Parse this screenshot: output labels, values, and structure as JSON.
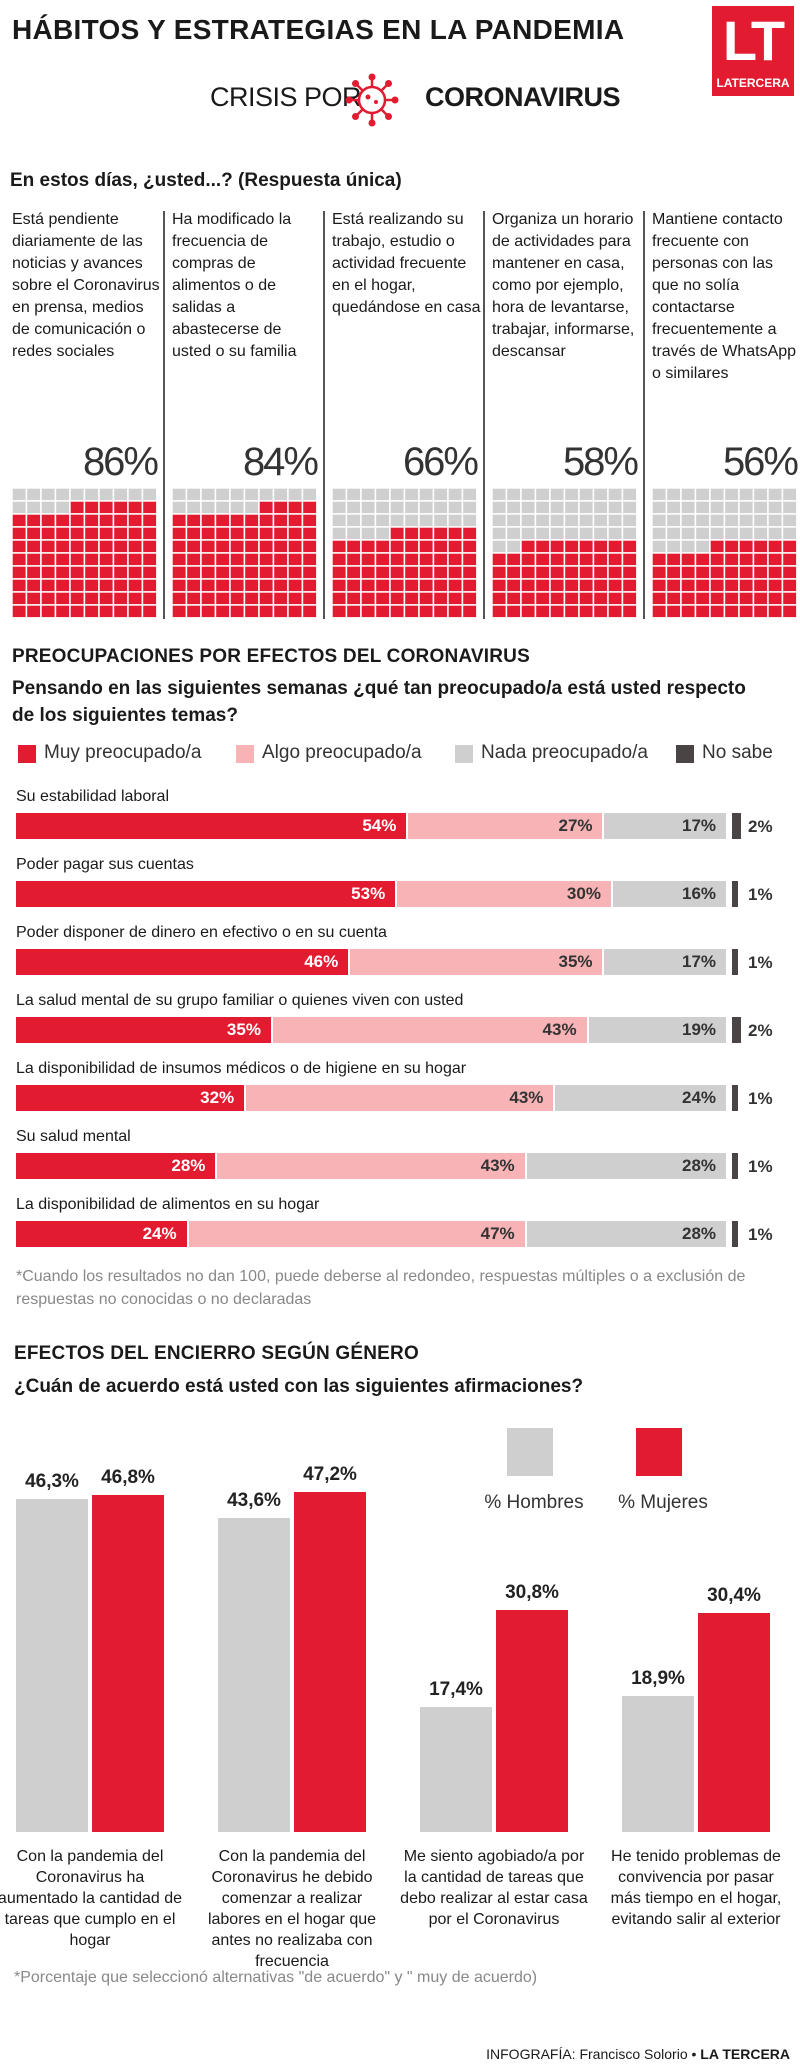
{
  "header": {
    "title": "HÁBITOS Y ESTRATEGIAS EN LA PANDEMIA",
    "crisis_pre": "CRISIS POR",
    "crisis_post": "CORONAVIRUS",
    "logo_letters": "LT",
    "logo_name": "LATERCERA"
  },
  "colors": {
    "red": "#e21b30",
    "pink": "#f7b3b6",
    "gray": "#cfcfcf",
    "dark": "#4a4544"
  },
  "chart_data": [
    {
      "type": "waffle",
      "title": "En estos días, ¿usted...? (Respuesta única)",
      "categories": [
        "Está pendiente diariamente de las noticias y avances sobre el Coronavirus en prensa, medios de comunicación o redes sociales",
        "Ha modificado la frecuencia de compras de alimentos o de salidas a abastecerse de usted o su familia",
        "Está realizando su trabajo, estudio o actividad frecuente en el hogar, quedándose en casa",
        "Organiza un horario de actividades para mantener en casa, como por ejemplo, hora de levantarse, trabajar, informarse, descansar",
        "Mantiene contacto frecuente con personas con las que no solía contactarse frecuentemente a través de WhatsApp o similares"
      ],
      "values": [
        86,
        84,
        66,
        58,
        56
      ],
      "labels": [
        "86%",
        "84%",
        "66%",
        "58%",
        "56%"
      ]
    },
    {
      "type": "bar",
      "stacked": true,
      "orientation": "horizontal",
      "title": "PREOCUPACIONES POR EFECTOS DEL CORONAVIRUS",
      "subtitle": "Pensando en las siguientes semanas ¿qué tan preocupado/a está usted respecto de los siguientes temas?",
      "legend": [
        "Muy preocupado/a",
        "Algo preocupado/a",
        "Nada preocupado/a",
        "No sabe"
      ],
      "categories": [
        "Su estabilidad laboral",
        "Poder pagar sus cuentas",
        "Poder disponer de dinero en efectivo o en su cuenta",
        "La salud mental de su grupo familiar o quienes viven con usted",
        "La disponibilidad de insumos médicos o de higiene en su hogar",
        "Su salud mental",
        "La disponibilidad de alimentos en su hogar"
      ],
      "series": [
        {
          "name": "Muy preocupado/a",
          "values": [
            54,
            53,
            46,
            35,
            32,
            28,
            24
          ],
          "labels": [
            "54%",
            "53%",
            "46%",
            "35%",
            "32%",
            "28%",
            "24%"
          ]
        },
        {
          "name": "Algo preocupado/a",
          "values": [
            27,
            30,
            35,
            43,
            43,
            43,
            47
          ],
          "labels": [
            "27%",
            "30%",
            "35%",
            "43%",
            "43%",
            "43%",
            "47%"
          ]
        },
        {
          "name": "Nada preocupado/a",
          "values": [
            17,
            16,
            17,
            19,
            24,
            28,
            28
          ],
          "labels": [
            "17%",
            "16%",
            "17%",
            "19%",
            "24%",
            "28%",
            "28%"
          ]
        },
        {
          "name": "No sabe",
          "values": [
            2,
            1,
            1,
            2,
            1,
            1,
            1
          ],
          "labels": [
            "2%",
            "1%",
            "1%",
            "2%",
            "1%",
            "1%",
            "1%"
          ]
        }
      ],
      "note": "*Cuando los resultados no dan 100, puede deberse al redondeo, respuestas múltiples o a exclusión de respuestas no conocidas o no declaradas"
    },
    {
      "type": "bar",
      "title": "EFECTOS DEL ENCIERRO SEGÚN GÉNERO",
      "subtitle": "¿Cuán de acuerdo está usted con las siguientes afirmaciones?",
      "legend": [
        "% Hombres",
        "% Mujeres"
      ],
      "categories": [
        "Con la pandemia del Coronavirus ha aumentado la cantidad de tareas que cumplo en el hogar",
        "Con la pandemia del Coronavirus he debido comenzar a realizar labores en el hogar que antes no realizaba con frecuencia",
        "Me siento agobiado/a por la cantidad de tareas que debo realizar al estar casa por el Coronavirus",
        "He tenido problemas de convivencia por pasar más tiempo en el hogar, evitando salir al exterior"
      ],
      "series": [
        {
          "name": "% Hombres",
          "values": [
            46.3,
            43.6,
            17.4,
            18.9
          ],
          "labels": [
            "46,3%",
            "43,6%",
            "17,4%",
            "18,9%"
          ]
        },
        {
          "name": "% Mujeres",
          "values": [
            46.8,
            47.2,
            30.8,
            30.4
          ],
          "labels": [
            "46,8%",
            "47,2%",
            "30,8%",
            "30,4%"
          ]
        }
      ],
      "note": "*Porcentaje que seleccionó alternativas \"de acuerdo\" y \" muy de acuerdo)"
    }
  ],
  "credit": {
    "label": "INFOGRAFÍA: Francisco Solorio • ",
    "brand": "LA TERCERA"
  }
}
